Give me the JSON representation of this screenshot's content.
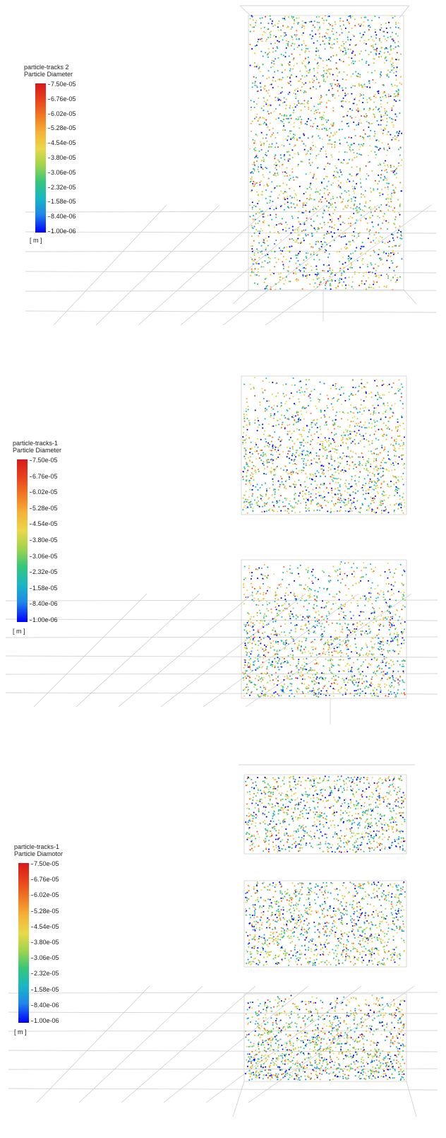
{
  "panels": [
    {
      "legend_title_1": "particle-tracks 2",
      "legend_title_2": "Particle Diameter",
      "ticks": [
        "7.50e-05",
        "6.76e-05",
        "6.02e-05",
        "5.28e-05",
        "4.54e-05",
        "3.80e-05",
        "3.06e-05",
        "2.32e-05",
        "1.58e-05",
        "8.40e-06",
        "1.00e-06"
      ],
      "unit": "[ m ]"
    },
    {
      "legend_title_1": "particle-tracks-1",
      "legend_title_2": "Particle Diameter",
      "ticks": [
        "7.50e-05",
        "6.76e-05",
        "6.02e-05",
        "5.28e-05",
        "4.54e-05",
        "3.80e-05",
        "3.06e-05",
        "2.32e-05",
        "1.58e-05",
        "8.40e-06",
        "1.00e-06"
      ],
      "unit": "[ m ]"
    },
    {
      "legend_title_1": "particle-tracks-1",
      "legend_title_2": "Particle Diamotor",
      "ticks": [
        "7.50e-05",
        "6.76e-05",
        "6.02e-05",
        "5.28e-05",
        "4.54e-05",
        "3.80e-05",
        "3.06e-05",
        "2.32e-05",
        "1.58e-05",
        "8.40e-06",
        "1.00e-06"
      ],
      "unit": "[ m ]"
    }
  ],
  "colormap": [
    "#d7191c",
    "#e8421d",
    "#f07a22",
    "#f5b339",
    "#e8d84a",
    "#9ed44c",
    "#35c67a",
    "#18b7c4",
    "#1f86e8",
    "#0000ff"
  ]
}
